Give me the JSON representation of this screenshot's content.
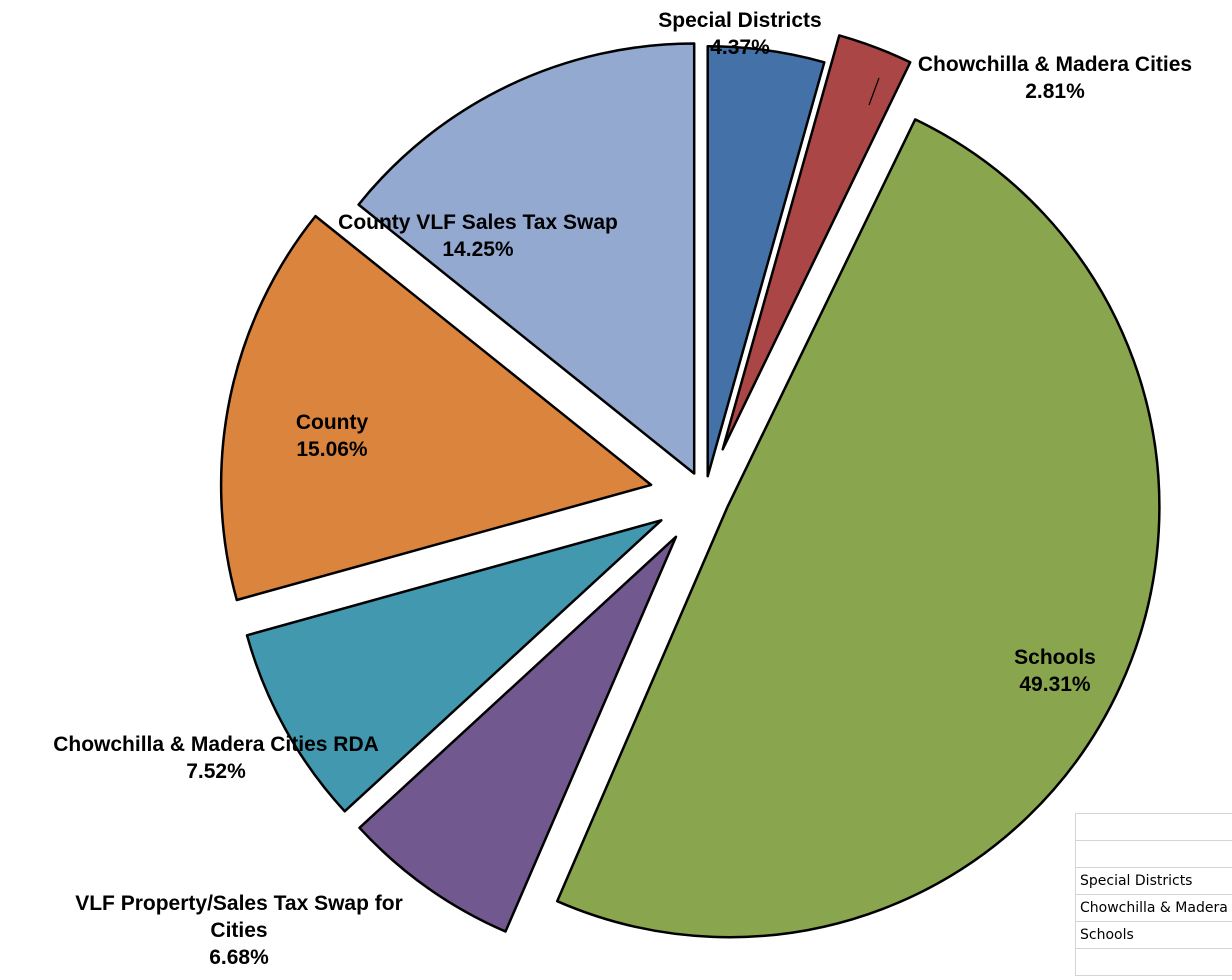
{
  "chart_data": {
    "type": "pie",
    "exploded": true,
    "slices": [
      {
        "label": "Special Districts",
        "display": "4.37%",
        "value": 4.37,
        "color": "#4472a8"
      },
      {
        "label": "Chowchilla & Madera Cities",
        "display": "2.81%",
        "value": 2.81,
        "color": "#aa4645"
      },
      {
        "label": "Schools",
        "display": "49.31%",
        "value": 49.31,
        "color": "#89a54e"
      },
      {
        "label": "VLF Property/Sales Tax Swap for Cities",
        "display": "6.68%",
        "value": 6.68,
        "color": "#71588f"
      },
      {
        "label": "Chowchilla & Madera Cities RDA",
        "display": "7.52%",
        "value": 7.52,
        "color": "#4198af"
      },
      {
        "label": "County",
        "display": "15.06%",
        "value": 15.06,
        "color": "#db843d"
      },
      {
        "label": "County VLF Sales Tax Swap",
        "display": "14.25%",
        "value": 14.25,
        "color": "#93a9cf"
      }
    ]
  },
  "sheet": {
    "rows": [
      "",
      "",
      "Special Districts",
      "Chowchilla & Madera Cities",
      "Schools",
      ""
    ]
  }
}
